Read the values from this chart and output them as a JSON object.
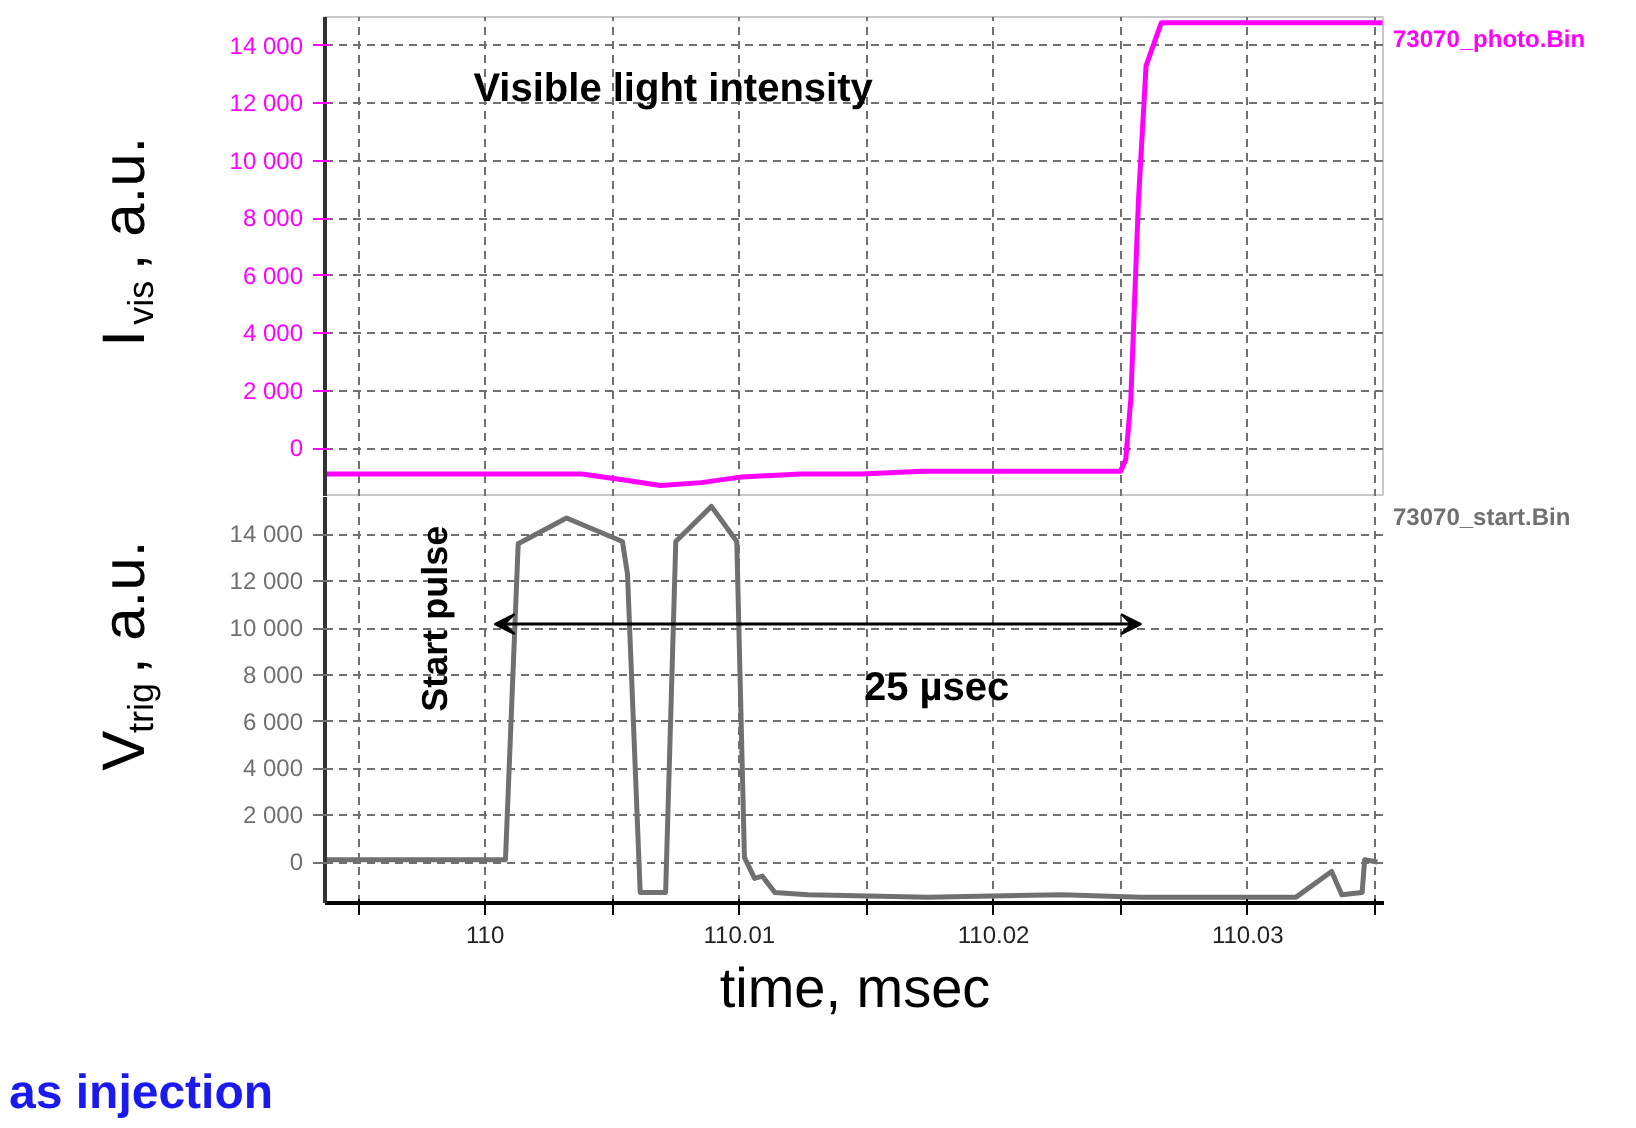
{
  "chart_data": [
    {
      "type": "line",
      "tick_labels": "y",
      "ylabel": "I$_{vis}$, a.u.",
      "grid": true,
      "xlim": [
        109.9937,
        110.0354
      ],
      "xticks": [
        {
          "value": 109.995,
          "label": null
        },
        {
          "value": 110,
          "label": null
        },
        {
          "value": 110.005,
          "label": null
        },
        {
          "value": 110.01,
          "label": null
        },
        {
          "value": 110.015,
          "label": null
        },
        {
          "value": 110.02,
          "label": null
        },
        {
          "value": 110.025,
          "label": null
        },
        {
          "value": 110.03,
          "label": null
        },
        {
          "value": 110.035,
          "label": null
        }
      ],
      "ylim": [
        -1700,
        15000
      ],
      "yticks": [
        0,
        {
          "value": 2000,
          "label": "2 000"
        },
        {
          "value": 4000,
          "label": "4 000"
        },
        {
          "value": 6000,
          "label": "6 000"
        },
        {
          "value": 8000,
          "label": "8 000"
        },
        {
          "value": 10000,
          "label": "10 000"
        },
        {
          "value": 12000,
          "label": "12 000"
        },
        {
          "value": 14000,
          "label": "14 000"
        }
      ],
      "annotations": [
        "Visible light intensity"
      ],
      "series": [
        {
          "name": "73070_photo.Bin",
          "color": "#ff00ff",
          "x": [
            109.9937,
            110.0006,
            110.0038,
            110.0054,
            110.0069,
            110.0085,
            110.0101,
            110.0124,
            110.0148,
            110.0172,
            110.0195,
            110.0227,
            110.025,
            110.0252,
            110.0254,
            110.0257,
            110.026,
            110.0266,
            110.0353
          ],
          "values": [
            -900,
            -900,
            -900,
            -1100,
            -1300,
            -1200,
            -1000,
            -900,
            -900,
            -800,
            -800,
            -800,
            -800,
            -400,
            1700,
            8600,
            13300,
            14800,
            14800
          ]
        }
      ]
    },
    {
      "type": "line",
      "xlabel": "time, msec",
      "ylabel": "V$_{trig}$, a.u.",
      "grid": true,
      "xlim": [
        109.9937,
        110.0354
      ],
      "xticks": [
        {
          "value": 109.995,
          "label": null
        },
        {
          "value": 110,
          "label": "110"
        },
        {
          "value": 110.005,
          "label": null
        },
        {
          "value": 110.01,
          "label": "110.01"
        },
        {
          "value": 110.015,
          "label": null
        },
        {
          "value": 110.02,
          "label": "110.02"
        },
        {
          "value": 110.025,
          "label": null
        },
        {
          "value": 110.03,
          "label": "110.03"
        },
        {
          "value": 110.035,
          "label": null
        }
      ],
      "ylim": [
        -1750,
        15600
      ],
      "yticks": [
        0,
        {
          "value": 2000,
          "label": "2 000"
        },
        {
          "value": 4000,
          "label": "4 000"
        },
        {
          "value": 6000,
          "label": "6 000"
        },
        {
          "value": 8000,
          "label": "8 000"
        },
        {
          "value": 10000,
          "label": "10 000"
        },
        {
          "value": 12000,
          "label": "12 000"
        },
        {
          "value": 14000,
          "label": "14 000"
        }
      ],
      "annotations": [
        "Start pulse",
        "25 µsec",
        "as injection"
      ],
      "series": [
        {
          "name": "73070_start.Bin",
          "color": "#707070",
          "x": [
            109.9937,
            110.0008,
            110.0013,
            110.0032,
            110.0054,
            110.0056,
            110.0061,
            110.0071,
            110.0075,
            110.0089,
            110.0099,
            110.0102,
            110.0106,
            110.0109,
            110.0114,
            110.0127,
            110.0174,
            110.0227,
            110.0258,
            110.0319,
            110.0333,
            110.0337,
            110.0345,
            110.0346,
            110.0351
          ],
          "values": [
            100,
            100,
            13600,
            14700,
            13700,
            12300,
            -1300,
            -1300,
            13700,
            15200,
            13700,
            200,
            -700,
            -600,
            -1300,
            -1400,
            -1500,
            -1400,
            -1500,
            -1500,
            -400,
            -1400,
            -1300,
            100,
            0
          ]
        }
      ]
    }
  ]
}
